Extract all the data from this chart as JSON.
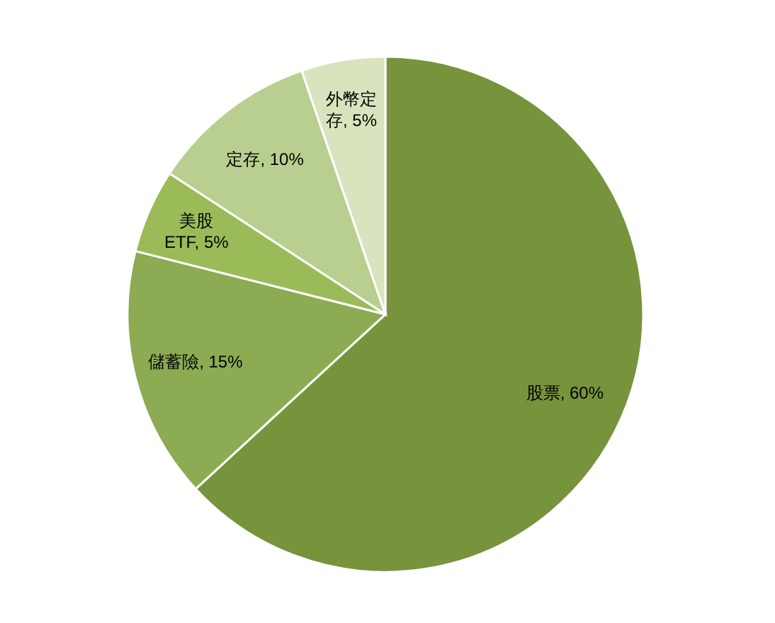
{
  "chart_data": {
    "type": "pie",
    "categories": [
      "股票",
      "儲蓄險",
      "美股ETF",
      "定存",
      "外幣定存"
    ],
    "values": [
      60,
      15,
      5,
      10,
      5
    ],
    "value_labels": [
      "60%",
      "15%",
      "5%",
      "10%",
      "5%"
    ],
    "colors": [
      "#77933c",
      "#8cab52",
      "#9bbb59",
      "#b9cf90",
      "#d7e4bd"
    ]
  }
}
